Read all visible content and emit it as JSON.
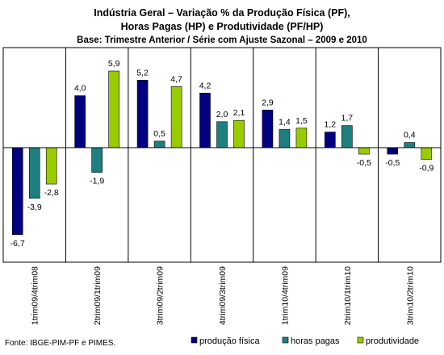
{
  "chart_data": {
    "type": "bar",
    "title_lines": [
      "Indústria Geral – Variação % da Produção Física (PF),",
      "Horas Pagas (HP) e Produtividade (PF/HP)"
    ],
    "subtitle": "Base: Trimestre Anterior / Série com Ajuste Sazonal – 2009 e 2010",
    "categories": [
      "1trim09/4trim08",
      "2trim09/1trim09",
      "3trim09/2trim09",
      "4trim09/3trim09",
      "1trim10/4trim09",
      "2trim10/1trim10",
      "3trim10/2trim10"
    ],
    "series": [
      {
        "name": "produção física",
        "color": "#000080",
        "values": [
          -6.7,
          4.0,
          5.2,
          4.2,
          2.9,
          1.2,
          -0.5
        ]
      },
      {
        "name": "horas pagas",
        "color": "#1F7F80",
        "values": [
          -3.9,
          -1.9,
          0.5,
          2.0,
          1.4,
          1.7,
          0.4
        ]
      },
      {
        "name": "produtividade",
        "color": "#99CC00",
        "values": [
          -2.8,
          5.9,
          4.7,
          2.1,
          1.5,
          -0.5,
          -0.9
        ]
      }
    ],
    "data_labels": [
      [
        "-6,7",
        "4,0",
        "5,2",
        "4,2",
        "2,9",
        "1,2",
        "-0,5"
      ],
      [
        "-3,9",
        "-1,9",
        "0,5",
        "2,0",
        "1,4",
        "1,7",
        "0,4"
      ],
      [
        "-2,8",
        "5,9",
        "4,7",
        "2,1",
        "1,5",
        "-0,5",
        "-0,9"
      ]
    ],
    "ylim": [
      -7.5,
      7.0
    ],
    "grid": false,
    "legend_position": "bottom-right",
    "source": "Fonte: IBGE-PIM-PF e PIMES."
  }
}
